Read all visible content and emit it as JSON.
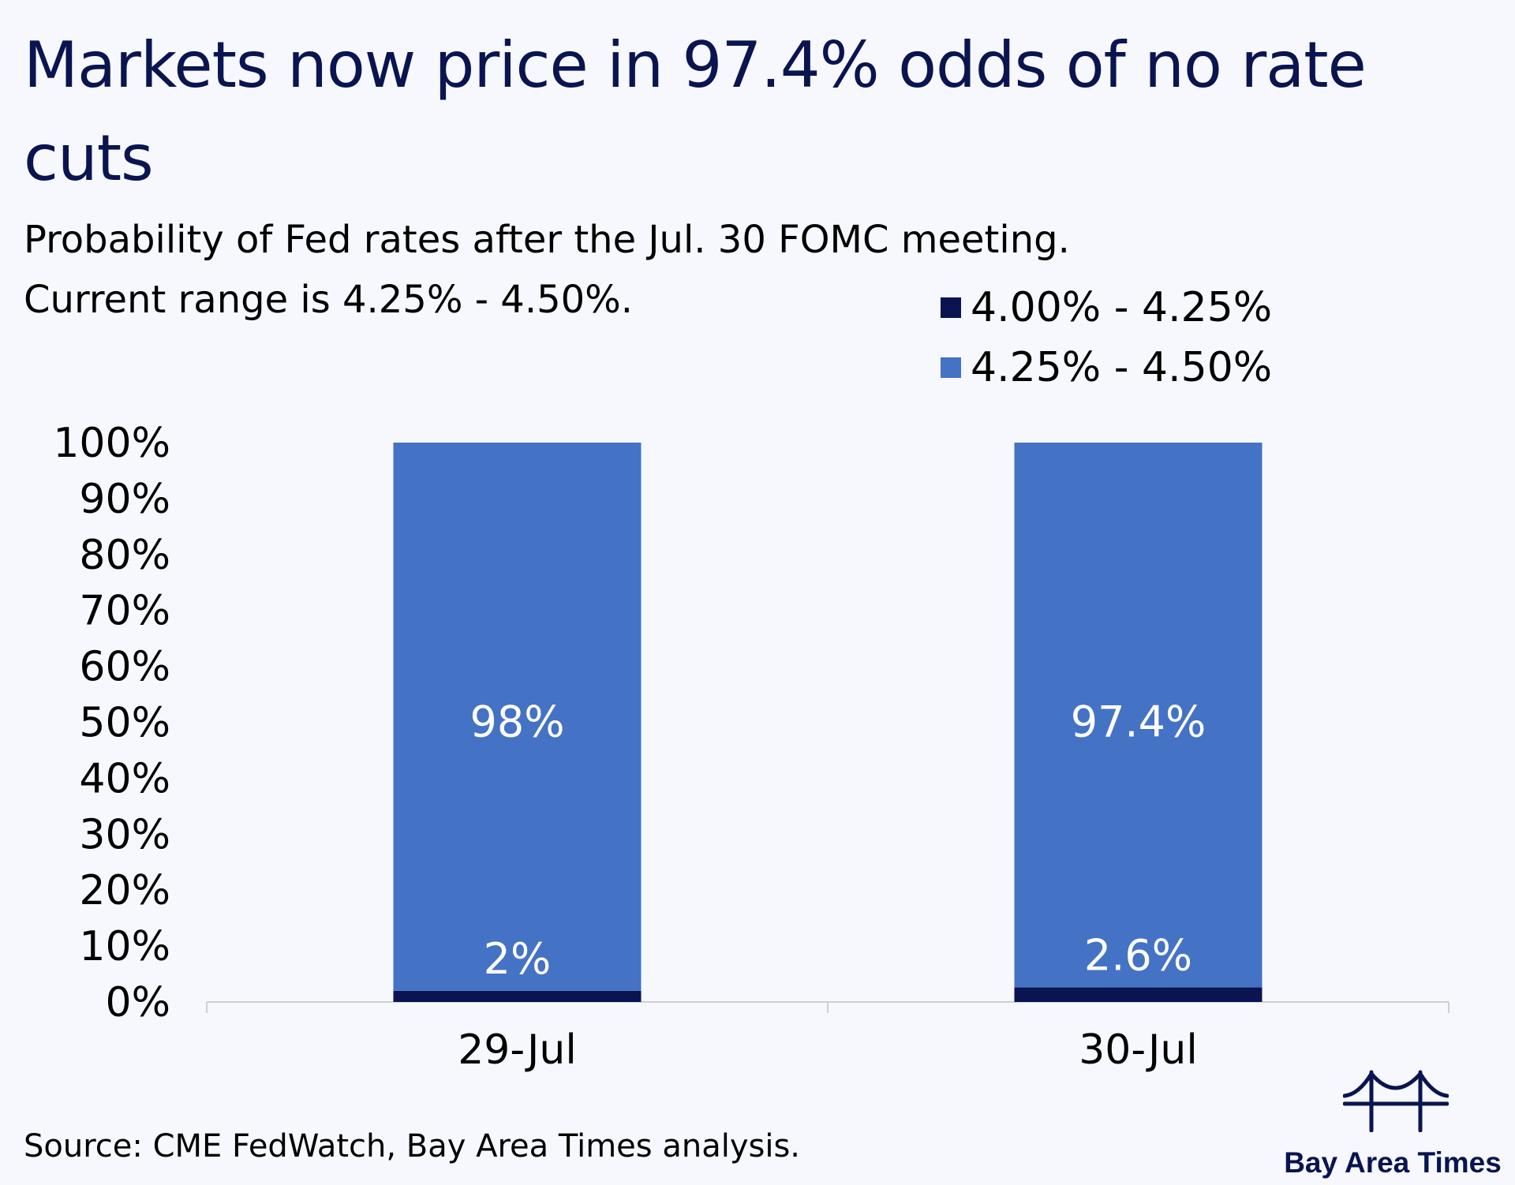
{
  "header": {
    "title": "Markets now price in 97.4% odds of no rate cuts",
    "subtitle_line1": "Probability of Fed rates after the Jul. 30 FOMC meeting.",
    "subtitle_line2": "Current range is 4.25% - 4.50%."
  },
  "footer": {
    "source": "Source: CME FedWatch, Bay Area Times analysis.",
    "brand_name": "Bay Area Times",
    "brand_icon": "bridge-icon"
  },
  "colors": {
    "background": "#f6f8fd",
    "title": "#0a1450",
    "series_cut": "#0a1450",
    "series_hold": "#4472c4",
    "bar_label": "#ffffff",
    "axis": "#d0d0d0"
  },
  "chart_data": {
    "type": "bar",
    "stacked": true,
    "categories": [
      "29-Jul",
      "30-Jul"
    ],
    "series": [
      {
        "name": "4.00% - 4.25%",
        "values": [
          2,
          2.6
        ],
        "labels": [
          "2%",
          "2.6%"
        ],
        "color": "#0a1450"
      },
      {
        "name": "4.25% - 4.50%",
        "values": [
          98,
          97.4
        ],
        "labels": [
          "98%",
          "97.4%"
        ],
        "color": "#4472c4"
      }
    ],
    "ylim": [
      0,
      100
    ],
    "yticks": [
      0,
      10,
      20,
      30,
      40,
      50,
      60,
      70,
      80,
      90,
      100
    ],
    "ytick_labels": [
      "0%",
      "10%",
      "20%",
      "30%",
      "40%",
      "50%",
      "60%",
      "70%",
      "80%",
      "90%",
      "100%"
    ],
    "xlabel": "",
    "ylabel": "",
    "grid": false,
    "legend_position": "top-right"
  }
}
